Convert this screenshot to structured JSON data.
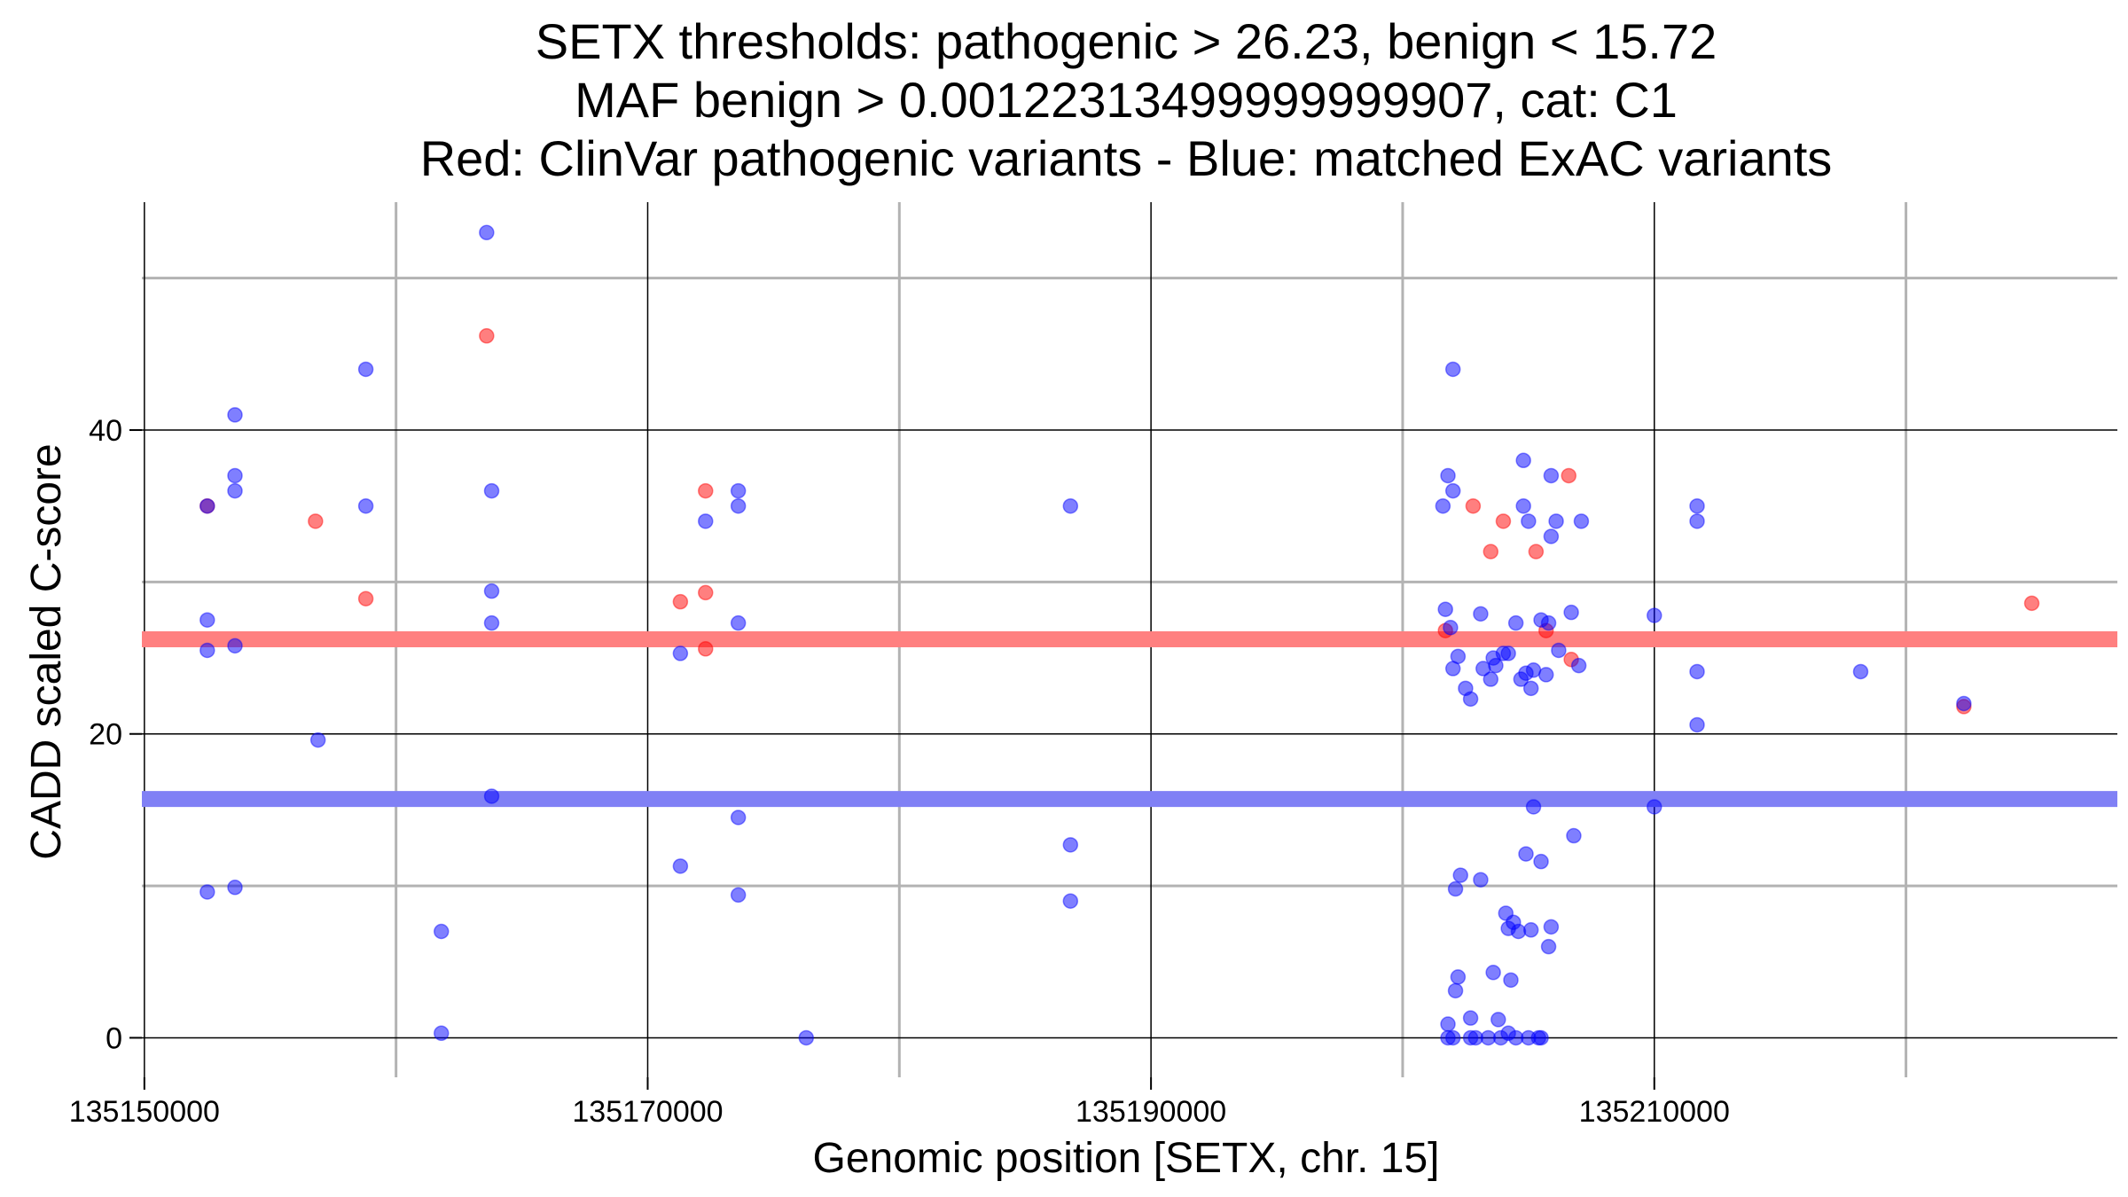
{
  "chart_data": {
    "type": "scatter",
    "title_lines": [
      "SETX thresholds: pathogenic > 26.23, benign < 15.72",
      "MAF benign > 0.00122313499999999907, cat: C1",
      "Red: ClinVar pathogenic variants - Blue: matched ExAC variants"
    ],
    "xlabel": "Genomic position [SETX, chr. 15]",
    "ylabel": "CADD scaled C-score",
    "xlim": [
      135149900,
      135228400
    ],
    "ylim": [
      -2.6,
      55
    ],
    "x_ticks": [
      135150000,
      135170000,
      135190000,
      135210000
    ],
    "x_tick_labels": [
      "135150000",
      "135170000",
      "135190000",
      "135210000"
    ],
    "x_minor_grid": [
      135160000,
      135180000,
      135200000,
      135220000
    ],
    "y_ticks": [
      0,
      20,
      40
    ],
    "y_tick_labels": [
      "0",
      "20",
      "40"
    ],
    "y_minor_grid": [
      10,
      30,
      50
    ],
    "grid": true,
    "thresholds": [
      {
        "value": 26.23,
        "color": "#ff8080"
      },
      {
        "value": 15.72,
        "color": "#8080f5"
      }
    ],
    "series": [
      {
        "color": "#ff0000",
        "points": [
          [
            135152500,
            35.0
          ],
          [
            135156800,
            34.0
          ],
          [
            135158800,
            28.9
          ],
          [
            135163600,
            46.2
          ],
          [
            135171300,
            28.7
          ],
          [
            135172300,
            36.0
          ],
          [
            135172300,
            29.3
          ],
          [
            135172300,
            25.6
          ],
          [
            135201700,
            26.8
          ],
          [
            135202800,
            35.0
          ],
          [
            135203500,
            32.0
          ],
          [
            135204000,
            34.0
          ],
          [
            135205300,
            32.0
          ],
          [
            135205700,
            26.8
          ],
          [
            135206600,
            37.0
          ],
          [
            135206700,
            24.9
          ],
          [
            135225000,
            28.6
          ],
          [
            135222300,
            21.8
          ]
        ]
      },
      {
        "color": "#0000ff",
        "points": [
          [
            135152500,
            35.0
          ],
          [
            135152500,
            27.5
          ],
          [
            135152500,
            25.5
          ],
          [
            135152500,
            9.6
          ],
          [
            135153600,
            41.0
          ],
          [
            135153600,
            37.0
          ],
          [
            135153600,
            36.0
          ],
          [
            135153600,
            25.8
          ],
          [
            135153600,
            9.9
          ],
          [
            135156900,
            19.6
          ],
          [
            135158800,
            44.0
          ],
          [
            135158800,
            35.0
          ],
          [
            135161800,
            7.0
          ],
          [
            135161800,
            0.3
          ],
          [
            135163600,
            53.0
          ],
          [
            135163800,
            36.0
          ],
          [
            135163800,
            29.4
          ],
          [
            135163800,
            27.3
          ],
          [
            135163800,
            15.9
          ],
          [
            135171300,
            25.3
          ],
          [
            135171300,
            11.3
          ],
          [
            135172300,
            34.0
          ],
          [
            135173600,
            36.0
          ],
          [
            135173600,
            35.0
          ],
          [
            135173600,
            27.3
          ],
          [
            135173600,
            14.5
          ],
          [
            135173600,
            9.4
          ],
          [
            135176300,
            0.0
          ],
          [
            135186800,
            35.0
          ],
          [
            135186800,
            12.7
          ],
          [
            135186800,
            9.0
          ],
          [
            135202000,
            44.0
          ],
          [
            135201800,
            37.0
          ],
          [
            135202000,
            36.0
          ],
          [
            135201600,
            35.0
          ],
          [
            135201700,
            28.2
          ],
          [
            135201900,
            27.0
          ],
          [
            135202200,
            25.1
          ],
          [
            135202000,
            24.3
          ],
          [
            135202500,
            23.0
          ],
          [
            135202700,
            22.3
          ],
          [
            135203100,
            27.9
          ],
          [
            135203200,
            24.3
          ],
          [
            135203500,
            23.6
          ],
          [
            135203600,
            25.0
          ],
          [
            135203700,
            24.5
          ],
          [
            135204000,
            25.3
          ],
          [
            135204200,
            25.3
          ],
          [
            135204500,
            27.3
          ],
          [
            135204700,
            23.6
          ],
          [
            135204900,
            24.0
          ],
          [
            135204800,
            38.0
          ],
          [
            135204800,
            35.0
          ],
          [
            135205000,
            34.0
          ],
          [
            135205100,
            23.0
          ],
          [
            135205200,
            24.2
          ],
          [
            135205500,
            27.5
          ],
          [
            135205700,
            23.9
          ],
          [
            135205800,
            27.3
          ],
          [
            135205900,
            33.0
          ],
          [
            135205900,
            37.0
          ],
          [
            135206100,
            34.0
          ],
          [
            135206200,
            25.5
          ],
          [
            135206700,
            28.0
          ],
          [
            135207000,
            24.5
          ],
          [
            135207100,
            34.0
          ],
          [
            135205200,
            15.2
          ],
          [
            135204900,
            12.1
          ],
          [
            135205500,
            11.6
          ],
          [
            135206800,
            13.3
          ],
          [
            135202300,
            10.7
          ],
          [
            135203100,
            10.4
          ],
          [
            135202100,
            9.8
          ],
          [
            135204100,
            8.2
          ],
          [
            135204400,
            7.6
          ],
          [
            135204600,
            7.0
          ],
          [
            135204200,
            7.2
          ],
          [
            135205100,
            7.1
          ],
          [
            135205900,
            7.3
          ],
          [
            135205800,
            6.0
          ],
          [
            135203600,
            4.3
          ],
          [
            135204300,
            3.8
          ],
          [
            135202200,
            4.0
          ],
          [
            135202100,
            3.1
          ],
          [
            135202700,
            1.3
          ],
          [
            135203800,
            1.2
          ],
          [
            135201800,
            0.9
          ],
          [
            135201800,
            0.0
          ],
          [
            135202000,
            0.0
          ],
          [
            135202700,
            0.0
          ],
          [
            135202900,
            0.0
          ],
          [
            135203400,
            0.0
          ],
          [
            135203900,
            0.0
          ],
          [
            135204200,
            0.3
          ],
          [
            135204500,
            0.0
          ],
          [
            135205000,
            0.0
          ],
          [
            135205400,
            0.0
          ],
          [
            135205500,
            0.0
          ],
          [
            135210000,
            27.8
          ],
          [
            135210000,
            15.2
          ],
          [
            135211700,
            35.0
          ],
          [
            135211700,
            34.0
          ],
          [
            135211700,
            24.1
          ],
          [
            135211700,
            20.6
          ],
          [
            135218200,
            24.1
          ],
          [
            135222300,
            22.0
          ]
        ]
      }
    ]
  }
}
